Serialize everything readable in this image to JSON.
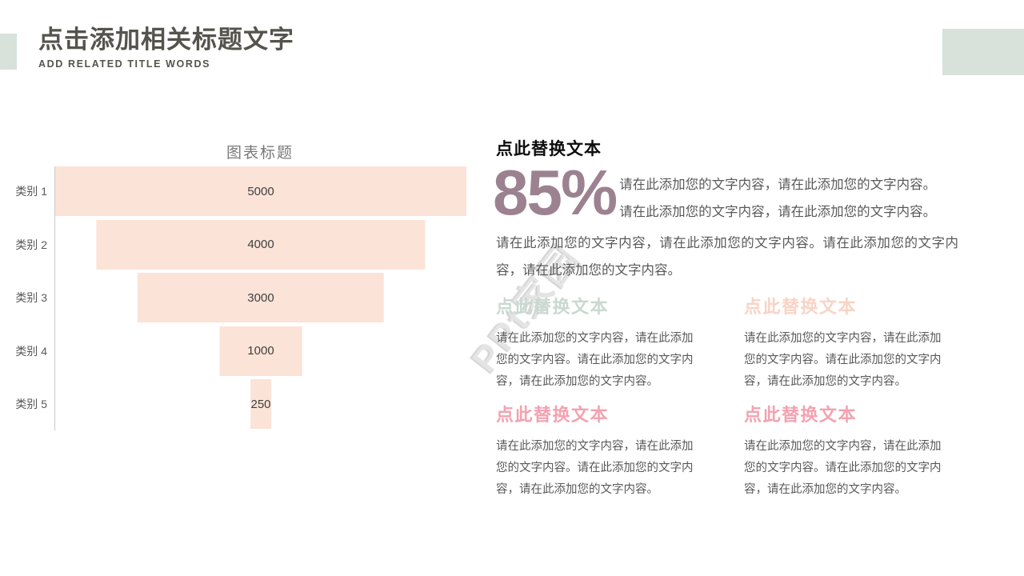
{
  "header": {
    "title": "点击添加相关标题文字",
    "subtitle": "ADD RELATED TITLE WORDS"
  },
  "decor": {
    "corner_block_color": "#d8e1da"
  },
  "watermark_text": "PPt家园",
  "chart_data": {
    "type": "bar",
    "variant": "funnel-centered-horizontal-bars",
    "title": "图表标题",
    "categories": [
      "类别 1",
      "类别 2",
      "类别 3",
      "类别 4",
      "类别 5"
    ],
    "values": [
      5000,
      4000,
      3000,
      1000,
      250
    ],
    "value_labels": [
      "5000",
      "4000",
      "3000",
      "1000",
      "250"
    ],
    "max_value": 5000,
    "bar_color": "#fbe3d7",
    "axis_line_color": "#c9c9c9",
    "legend": "none",
    "grid": "off"
  },
  "right_panel": {
    "heading": "点此替换文本",
    "percent": "85%",
    "percent_color": "#9c8290",
    "percent_side_line1": "请在此添加您的文字内容，请在此添加您的文字内容。",
    "percent_side_line2": "请在此添加您的文字内容，请在此添加您的文字内容。",
    "paragraph": "请在此添加您的文字内容，请在此添加您的文字内容。请在此添加您的文字内容，请在此添加您的文字内容。",
    "blocks": [
      {
        "heading": "点此替换文本",
        "heading_color": "#c9d9cf",
        "body": "请在此添加您的文字内容，请在此添加您的文字内容。请在此添加您的文字内容，请在此添加您的文字内容。"
      },
      {
        "heading": "点此替换文本",
        "heading_color": "#f8d4c5",
        "body": "请在此添加您的文字内容，请在此添加您的文字内容。请在此添加您的文字内容，请在此添加您的文字内容。"
      },
      {
        "heading": "点此替换文本",
        "heading_color": "#f3a2b0",
        "body": "请在此添加您的文字内容，请在此添加您的文字内容。请在此添加您的文字内容，请在此添加您的文字内容。"
      },
      {
        "heading": "点此替换文本",
        "heading_color": "#f3a2b0",
        "body": "请在此添加您的文字内容，请在此添加您的文字内容。请在此添加您的文字内容，请在此添加您的文字内容。"
      }
    ]
  }
}
